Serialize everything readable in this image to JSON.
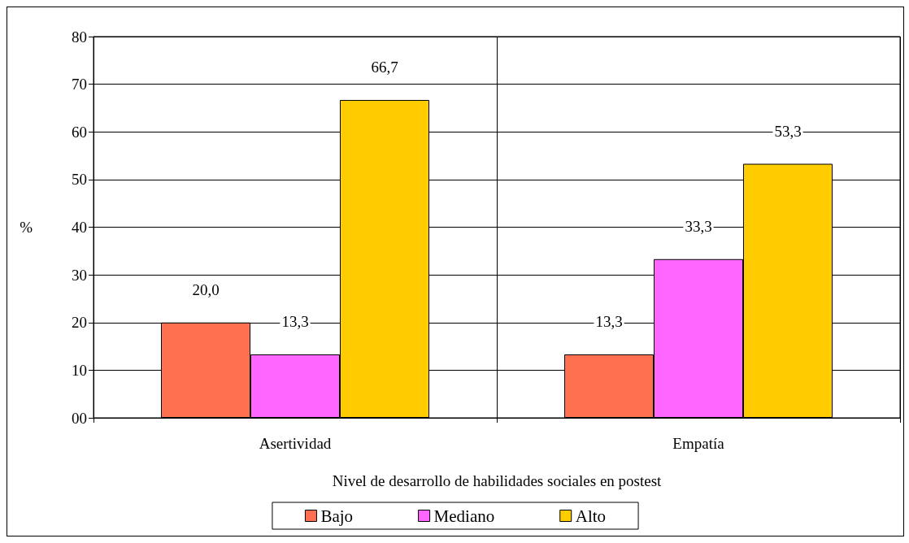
{
  "chart_data": {
    "type": "bar",
    "xlabel": "Nivel de desarrollo de habilidades sociales en postest",
    "ylabel": "%",
    "categories": [
      "Asertividad",
      "Empatía"
    ],
    "series": [
      {
        "name": "Bajo",
        "color": "#ff7050",
        "values": [
          20.0,
          13.3
        ],
        "value_labels": [
          "20,0",
          "13,3"
        ]
      },
      {
        "name": "Mediano",
        "color": "#ff66ff",
        "values": [
          13.3,
          33.3
        ],
        "value_labels": [
          "13,3",
          "33,3"
        ]
      },
      {
        "name": "Alto",
        "color": "#ffcc00",
        "values": [
          66.7,
          53.3
        ],
        "value_labels": [
          "66,7",
          "53,3"
        ]
      }
    ],
    "ylim": [
      0,
      80
    ],
    "yticks": [
      {
        "value": 0,
        "label": "00"
      },
      10,
      20,
      30,
      40,
      50,
      60,
      70,
      80
    ],
    "grid": true,
    "legend": "bottom"
  }
}
